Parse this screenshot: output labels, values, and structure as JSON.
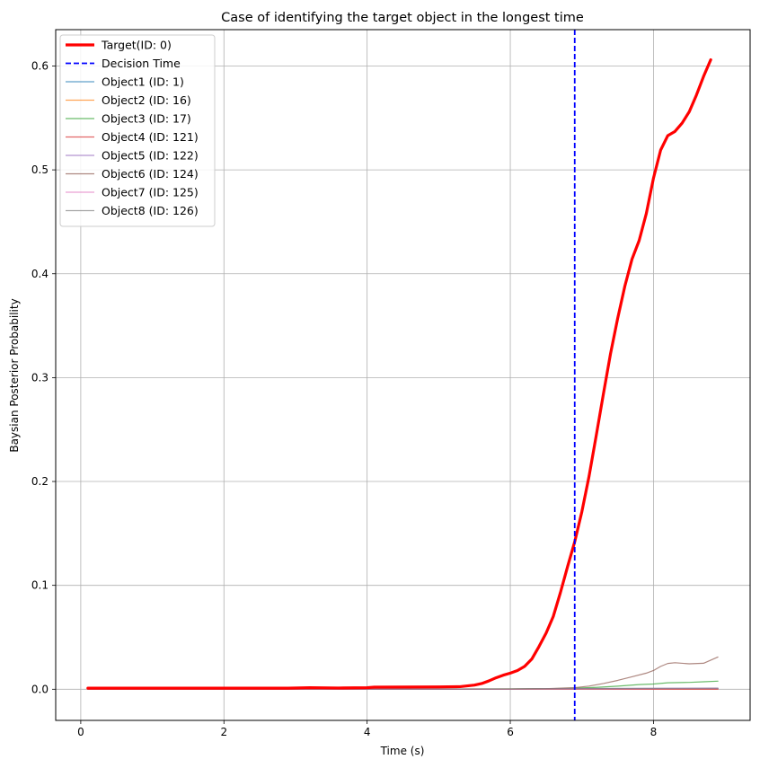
{
  "chart_data": {
    "type": "line",
    "title": "Case of identifying the target object in the longest time",
    "xlabel": "Time (s)",
    "ylabel": "Baysian Posterior Probability",
    "xlim": [
      -0.35,
      9.35
    ],
    "ylim": [
      -0.03,
      0.635
    ],
    "xticks": [
      0,
      2,
      4,
      6,
      8
    ],
    "xtick_labels": [
      "0",
      "2",
      "4",
      "6",
      "8"
    ],
    "yticks": [
      0.0,
      0.1,
      0.2,
      0.3,
      0.4,
      0.5,
      0.6
    ],
    "ytick_labels": [
      "0.0",
      "0.1",
      "0.2",
      "0.3",
      "0.4",
      "0.5",
      "0.6"
    ],
    "grid": true,
    "legend_position": "upper left",
    "decision_time": {
      "name": "Decision Time",
      "x": 6.9,
      "color": "#0000ff",
      "style": "dashed"
    },
    "series": [
      {
        "name": "Target(ID: 0)",
        "color": "#ff0000",
        "width": 3.2,
        "opacity": 1,
        "points": [
          [
            0.1,
            0.001
          ],
          [
            1.0,
            0.001
          ],
          [
            2.0,
            0.001
          ],
          [
            2.9,
            0.001
          ],
          [
            3.2,
            0.0015
          ],
          [
            3.6,
            0.0012
          ],
          [
            4.0,
            0.0015
          ],
          [
            4.1,
            0.002
          ],
          [
            5.0,
            0.0022
          ],
          [
            5.3,
            0.0025
          ],
          [
            5.5,
            0.004
          ],
          [
            5.6,
            0.0055
          ],
          [
            5.7,
            0.008
          ],
          [
            5.8,
            0.011
          ],
          [
            5.9,
            0.0135
          ],
          [
            6.0,
            0.0155
          ],
          [
            6.1,
            0.018
          ],
          [
            6.2,
            0.022
          ],
          [
            6.3,
            0.029
          ],
          [
            6.4,
            0.041
          ],
          [
            6.5,
            0.054
          ],
          [
            6.6,
            0.07
          ],
          [
            6.7,
            0.093
          ],
          [
            6.8,
            0.118
          ],
          [
            6.9,
            0.142
          ],
          [
            7.0,
            0.171
          ],
          [
            7.1,
            0.205
          ],
          [
            7.2,
            0.244
          ],
          [
            7.3,
            0.284
          ],
          [
            7.4,
            0.323
          ],
          [
            7.5,
            0.357
          ],
          [
            7.6,
            0.388
          ],
          [
            7.7,
            0.414
          ],
          [
            7.8,
            0.432
          ],
          [
            7.9,
            0.458
          ],
          [
            8.0,
            0.492
          ],
          [
            8.1,
            0.519
          ],
          [
            8.2,
            0.533
          ],
          [
            8.3,
            0.537
          ],
          [
            8.4,
            0.545
          ],
          [
            8.5,
            0.556
          ],
          [
            8.6,
            0.572
          ],
          [
            8.7,
            0.59
          ],
          [
            8.8,
            0.606
          ]
        ]
      },
      {
        "name": "Object1 (ID: 1)",
        "color": "#1f77b4",
        "width": 1.2,
        "opacity": 0.7,
        "points": [
          [
            0.1,
            0.0
          ],
          [
            3.0,
            0.0
          ],
          [
            6.0,
            0.0003
          ],
          [
            6.9,
            0.0005
          ],
          [
            8.9,
            0.0005
          ]
        ]
      },
      {
        "name": "Object2 (ID: 16)",
        "color": "#ff7f0e",
        "width": 1.2,
        "opacity": 0.7,
        "points": [
          [
            0.1,
            0.0
          ],
          [
            3.0,
            0.0
          ],
          [
            6.0,
            0.0003
          ],
          [
            6.9,
            0.0004
          ],
          [
            8.9,
            0.0004
          ]
        ]
      },
      {
        "name": "Object3 (ID: 17)",
        "color": "#2ca02c",
        "width": 1.2,
        "opacity": 0.7,
        "points": [
          [
            0.1,
            0.0
          ],
          [
            6.0,
            0.0003
          ],
          [
            6.6,
            0.0006
          ],
          [
            6.9,
            0.001
          ],
          [
            7.2,
            0.0018
          ],
          [
            7.5,
            0.003
          ],
          [
            7.8,
            0.0045
          ],
          [
            8.0,
            0.005
          ],
          [
            8.2,
            0.0062
          ],
          [
            8.5,
            0.0066
          ],
          [
            8.7,
            0.0072
          ],
          [
            8.9,
            0.0078
          ]
        ]
      },
      {
        "name": "Object4 (ID: 121)",
        "color": "#d62728",
        "width": 1.2,
        "opacity": 0.7,
        "points": [
          [
            0.1,
            0.0
          ],
          [
            3.0,
            0.0
          ],
          [
            6.0,
            0.0
          ],
          [
            8.9,
            0.0
          ]
        ]
      },
      {
        "name": "Object5 (ID: 122)",
        "color": "#9467bd",
        "width": 1.2,
        "opacity": 0.7,
        "points": [
          [
            0.1,
            0.0
          ],
          [
            6.0,
            0.0002
          ],
          [
            7.0,
            0.0006
          ],
          [
            8.0,
            0.0008
          ],
          [
            8.9,
            0.001
          ]
        ]
      },
      {
        "name": "Object6 (ID: 124)",
        "color": "#8c564b",
        "width": 1.2,
        "opacity": 0.7,
        "points": [
          [
            0.1,
            0.0
          ],
          [
            6.0,
            0.0002
          ],
          [
            6.5,
            0.0005
          ],
          [
            6.9,
            0.0015
          ],
          [
            7.1,
            0.003
          ],
          [
            7.3,
            0.0055
          ],
          [
            7.5,
            0.0085
          ],
          [
            7.7,
            0.012
          ],
          [
            7.9,
            0.0155
          ],
          [
            8.0,
            0.018
          ],
          [
            8.1,
            0.022
          ],
          [
            8.2,
            0.0248
          ],
          [
            8.3,
            0.0255
          ],
          [
            8.5,
            0.0245
          ],
          [
            8.7,
            0.025
          ],
          [
            8.9,
            0.031
          ]
        ]
      },
      {
        "name": "Object7 (ID: 125)",
        "color": "#e377c2",
        "width": 1.2,
        "opacity": 0.7,
        "points": [
          [
            0.1,
            0.0
          ],
          [
            6.0,
            0.0001
          ],
          [
            7.0,
            0.0004
          ],
          [
            8.0,
            0.0006
          ],
          [
            8.9,
            0.0007
          ]
        ]
      },
      {
        "name": "Object8 (ID: 126)",
        "color": "#7f7f7f",
        "width": 1.2,
        "opacity": 0.7,
        "points": [
          [
            0.1,
            0.0
          ],
          [
            6.0,
            0.0002
          ],
          [
            7.0,
            0.0006
          ],
          [
            8.0,
            0.0008
          ],
          [
            8.9,
            0.0009
          ]
        ]
      }
    ]
  }
}
